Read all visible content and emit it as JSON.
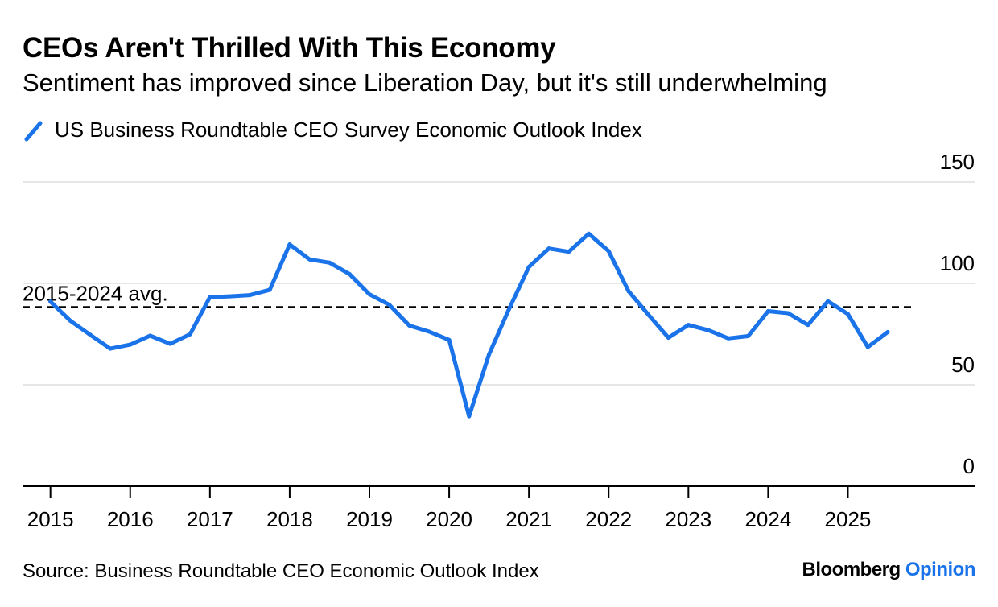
{
  "title": "CEOs Aren't Thrilled With This Economy",
  "subtitle": "Sentiment has improved since Liberation Day, but it's still underwhelming",
  "footer": {
    "source": "Source: Business Roundtable CEO Economic Outlook Index",
    "brand_main": "Bloomberg",
    "brand_sub": "Opinion"
  },
  "colors": {
    "line": "#1a73e8",
    "grid": "#e6e6e6",
    "axis": "#000000",
    "average": "#000000"
  },
  "chart_data": {
    "type": "line",
    "title": "CEOs Aren't Thrilled With This Economy",
    "subtitle": "Sentiment has improved since Liberation Day, but it's still underwhelming",
    "xlabel": "",
    "ylabel": "",
    "xlim": [
      2014.65,
      2026.6
    ],
    "ylim": [
      0,
      150
    ],
    "grid": true,
    "legend_position": "top-left",
    "x_ticks": [
      2015,
      2016,
      2017,
      2018,
      2019,
      2020,
      2021,
      2022,
      2023,
      2024,
      2025
    ],
    "x_tick_labels": [
      "2015",
      "2016",
      "2017",
      "2018",
      "2019",
      "2020",
      "2021",
      "2022",
      "2023",
      "2024",
      "2025"
    ],
    "y_ticks": [
      0,
      50,
      100,
      150
    ],
    "y_tick_labels": [
      "0",
      "50",
      "100",
      "150"
    ],
    "reference_line": {
      "label": "2015-2024 avg.",
      "value": 88.3,
      "style": "dashed"
    },
    "series": [
      {
        "name": "US Business Roundtable CEO Survey Economic Outlook Index",
        "x": [
          2015.0,
          2015.25,
          2015.5,
          2015.75,
          2016.0,
          2016.25,
          2016.5,
          2016.75,
          2017.0,
          2017.25,
          2017.5,
          2017.75,
          2018.0,
          2018.25,
          2018.5,
          2018.75,
          2019.0,
          2019.25,
          2019.5,
          2019.75,
          2020.0,
          2020.25,
          2020.5,
          2020.75,
          2021.0,
          2021.25,
          2021.5,
          2021.75,
          2022.0,
          2022.25,
          2022.5,
          2022.75,
          2023.0,
          2023.25,
          2023.5,
          2023.75,
          2024.0,
          2024.25,
          2024.5,
          2024.75,
          2025.0,
          2025.25,
          2025.5
        ],
        "values": [
          91.0,
          81.6,
          74.6,
          67.8,
          69.8,
          74.2,
          70.2,
          74.9,
          93.2,
          93.6,
          94.2,
          96.8,
          119.2,
          111.8,
          110.2,
          104.6,
          94.6,
          89.4,
          79.2,
          76.2,
          72.1,
          34.5,
          65.0,
          87.3,
          108.1,
          117.2,
          115.6,
          124.5,
          115.9,
          96.1,
          84.5,
          73.2,
          79.5,
          76.9,
          72.9,
          74.0,
          86.3,
          85.3,
          79.5,
          91.2,
          84.9,
          68.6,
          76.0
        ]
      }
    ]
  }
}
